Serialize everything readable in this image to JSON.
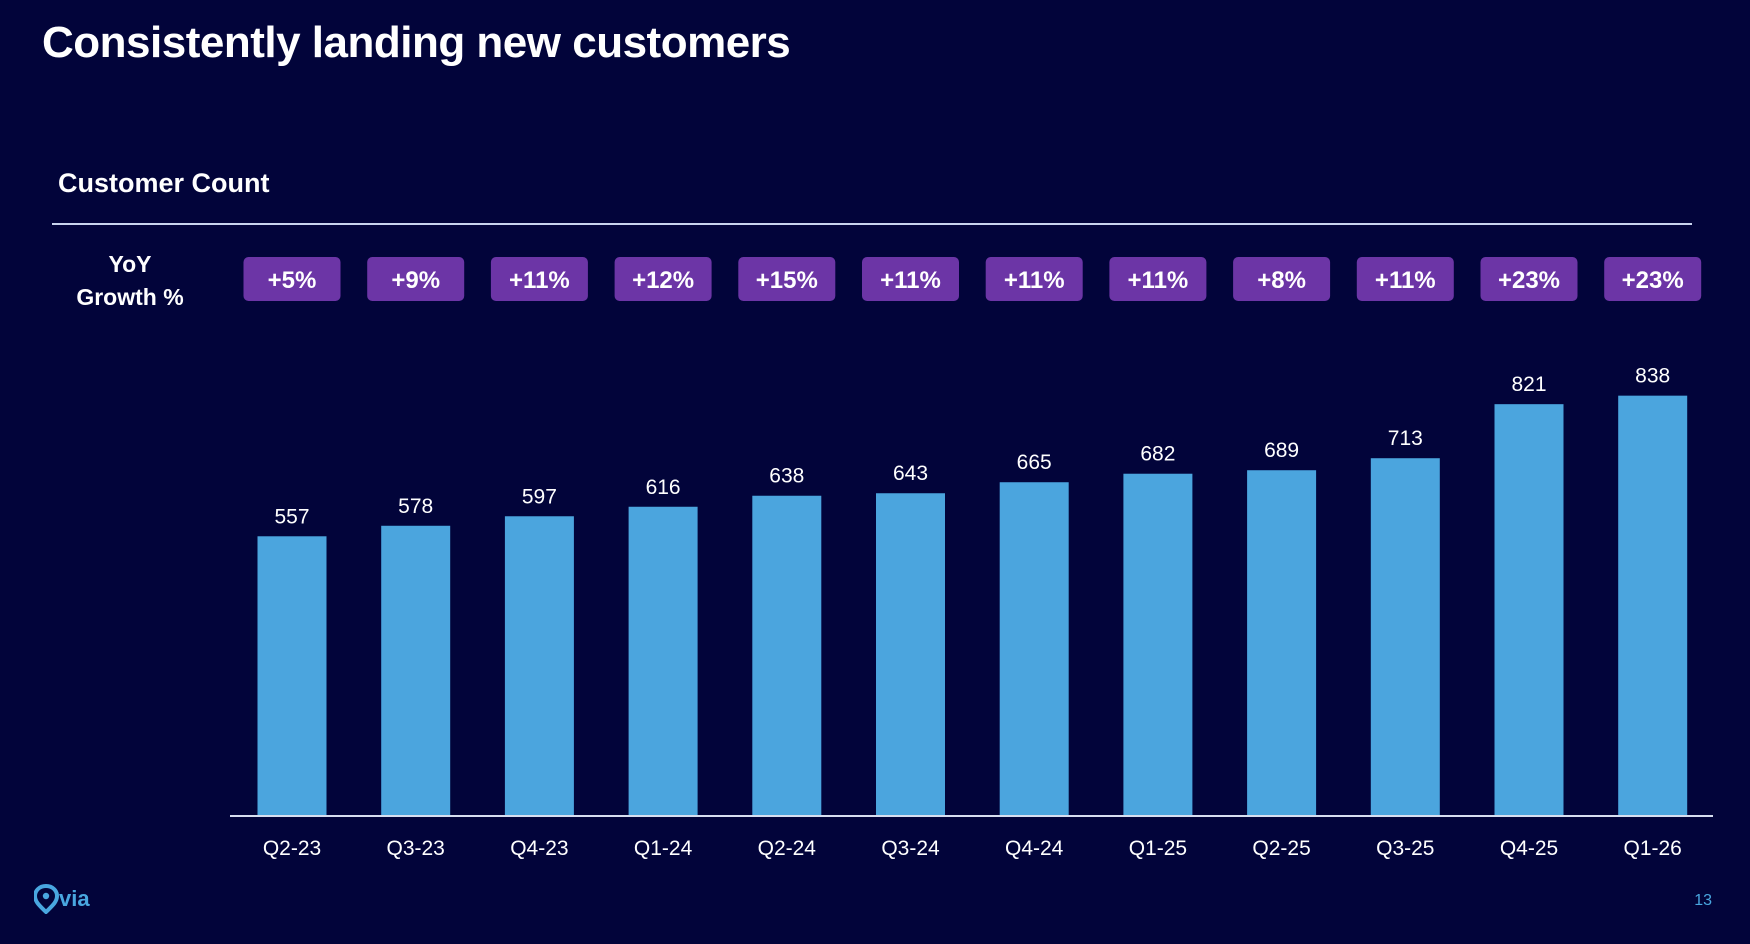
{
  "slide": {
    "title": "Consistently landing new customers",
    "page_number": "13",
    "logo_icon": "via-logo-icon"
  },
  "yoy_label": {
    "line1": "YoY",
    "line2": "Growth %"
  },
  "colors": {
    "background": "#02043a",
    "bar": "#4ba5de",
    "badge": "#6c35a6",
    "text": "#ffffff",
    "accent": "#49a7e0"
  },
  "chart_data": {
    "type": "bar",
    "title": "Customer Count",
    "xlabel": "",
    "ylabel": "",
    "grid": false,
    "legend": "none",
    "ylim": [
      0,
      900
    ],
    "categories": [
      "Q2-23",
      "Q3-23",
      "Q4-23",
      "Q1-24",
      "Q2-24",
      "Q3-24",
      "Q4-24",
      "Q1-25",
      "Q2-25",
      "Q3-25",
      "Q4-25",
      "Q1-26"
    ],
    "values": [
      557,
      578,
      597,
      616,
      638,
      643,
      665,
      682,
      689,
      713,
      821,
      838
    ],
    "yoy_growth": [
      "+5%",
      "+9%",
      "+11%",
      "+12%",
      "+15%",
      "+11%",
      "+11%",
      "+11%",
      "+8%",
      "+11%",
      "+23%",
      "+23%"
    ]
  }
}
